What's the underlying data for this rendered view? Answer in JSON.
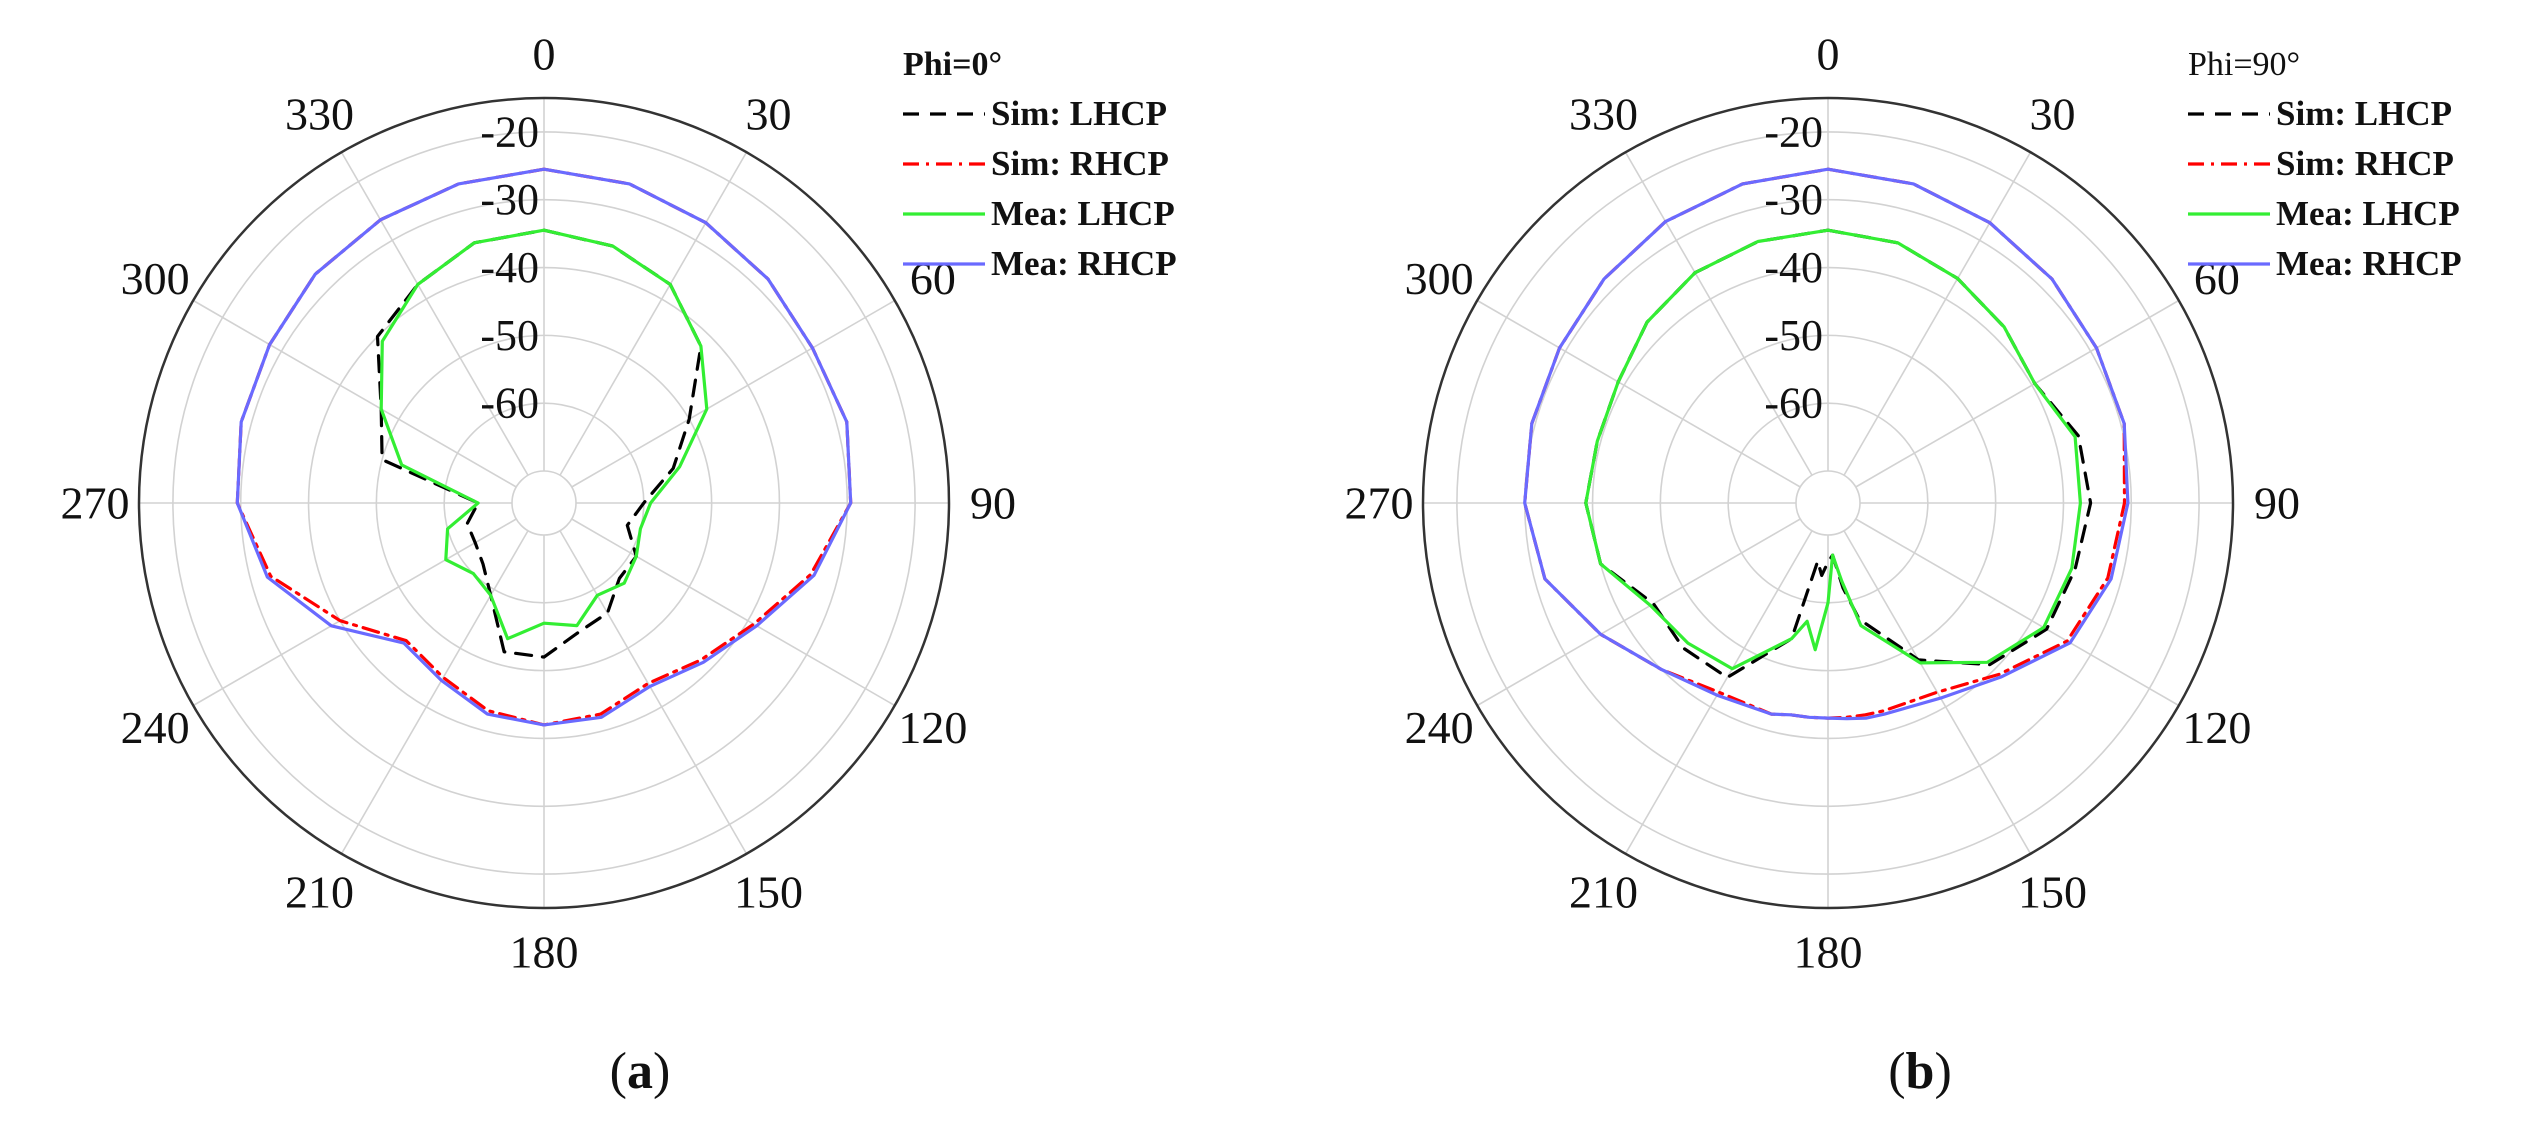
{
  "chart_data": [
    {
      "type": "line",
      "subtype": "polar",
      "panel_label": "(a)",
      "panel_letter": "a",
      "legend_title": "Phi=0°",
      "legend_title_bold": true,
      "theta_ticks": [
        0,
        30,
        60,
        90,
        120,
        150,
        180,
        210,
        240,
        270,
        300,
        330
      ],
      "r_ticks": [
        -20,
        -30,
        -40,
        -50,
        -60
      ],
      "r_range": [
        -70,
        -15
      ],
      "theta_direction": "clockwise",
      "theta_zero": "top",
      "grid": true,
      "legend_position": "top-right",
      "theta": [
        0,
        15,
        30,
        45,
        60,
        75,
        90,
        105,
        120,
        135,
        150,
        165,
        180,
        195,
        210,
        225,
        240,
        255,
        270,
        285,
        300,
        315,
        330,
        345
      ],
      "series": [
        {
          "name": "Sim: LHCP",
          "color": "#000000",
          "dash": "dashed",
          "values": [
            -34.5,
            -35.5,
            -37.5,
            -42,
            -50,
            -55,
            -60,
            -62,
            -59,
            -59,
            -56,
            -55,
            -52,
            -52,
            -59,
            -62,
            -63,
            -63,
            -65,
            -50,
            -47,
            -40,
            -37.5,
            -35
          ]
        },
        {
          "name": "Sim: RHCP",
          "color": "#ff0000",
          "dash": "dash-dot",
          "values": [
            -25.5,
            -26,
            -27,
            -28,
            -29,
            -28.5,
            -29.5,
            -34,
            -39,
            -42,
            -44,
            -42.5,
            -42,
            -43,
            -45,
            -46,
            -40,
            -33,
            -29.5,
            -28.5,
            -28,
            -27,
            -26.5,
            -26
          ]
        },
        {
          "name": "Mea: LHCP",
          "color": "#33ee33",
          "dash": "solid",
          "values": [
            -34.5,
            -35.5,
            -37.5,
            -42,
            -47,
            -54,
            -59,
            -60,
            -59,
            -58,
            -59,
            -56,
            -57,
            -54,
            -59,
            -60,
            -58,
            -60,
            -65,
            -53,
            -47,
            -41,
            -37.5,
            -35
          ]
        },
        {
          "name": "Mea: RHCP",
          "color": "#6a6aff",
          "dash": "solid",
          "values": [
            -25.5,
            -26,
            -27,
            -28,
            -29,
            -28.5,
            -29.5,
            -33.5,
            -38.5,
            -41.5,
            -43.5,
            -42,
            -42,
            -42.5,
            -44.5,
            -45.5,
            -38.5,
            -32.5,
            -29.5,
            -28.5,
            -28,
            -27,
            -26.5,
            -26
          ]
        }
      ]
    },
    {
      "type": "line",
      "subtype": "polar",
      "panel_label": "(b)",
      "panel_letter": "b",
      "legend_title": "Phi=90°",
      "legend_title_bold": false,
      "theta_ticks": [
        0,
        30,
        60,
        90,
        120,
        150,
        180,
        210,
        240,
        270,
        300,
        330
      ],
      "r_ticks": [
        -20,
        -30,
        -40,
        -50,
        -60
      ],
      "r_range": [
        -70,
        -15
      ],
      "theta_direction": "clockwise",
      "theta_zero": "top",
      "grid": true,
      "legend_position": "top-right",
      "theta": [
        0,
        15,
        30,
        45,
        60,
        75,
        90,
        105,
        120,
        135,
        150,
        165,
        170,
        175,
        180,
        185,
        190,
        195,
        210,
        225,
        240,
        255,
        270,
        285,
        300,
        315,
        330,
        345
      ],
      "series": [
        {
          "name": "Sim: LHCP",
          "color": "#000000",
          "dash": "dashed",
          "values": [
            -34.5,
            -35,
            -36.5,
            -38,
            -39.5,
            -36.5,
            -36,
            -37,
            -37.5,
            -41,
            -48,
            -57,
            -62,
            -67,
            -66,
            -64,
            -66,
            -54,
            -45,
            -44.5,
            -45,
            -40,
            -39,
            -39.5,
            -39,
            -37,
            -35.5,
            -34.8
          ]
        },
        {
          "name": "Sim: RHCP",
          "color": "#ff0000",
          "dash": "dash-dot",
          "values": [
            -25.5,
            -26,
            -27,
            -28,
            -29,
            -29.5,
            -31,
            -32,
            -34,
            -39,
            -42.5,
            -43,
            -43,
            -43,
            -43,
            -43,
            -43,
            -42.5,
            -42.5,
            -40,
            -36,
            -31.5,
            -30,
            -29.5,
            -29,
            -28,
            -26.8,
            -26
          ]
        },
        {
          "name": "Mea: LHCP",
          "color": "#33ee33",
          "dash": "solid",
          "values": [
            -34.5,
            -35,
            -36.5,
            -38,
            -39.5,
            -37,
            -37.5,
            -37.5,
            -38,
            -41.5,
            -47.5,
            -56,
            -63,
            -67,
            -60,
            -53,
            -57,
            -54,
            -46.5,
            -45.5,
            -44.5,
            -40,
            -39,
            -39.5,
            -39,
            -37,
            -35.5,
            -34.8
          ]
        },
        {
          "name": "Mea: RHCP",
          "color": "#6a6aff",
          "dash": "solid",
          "values": [
            -25.5,
            -26,
            -27,
            -28,
            -29,
            -29.5,
            -30.5,
            -31.5,
            -33.5,
            -38.5,
            -41.5,
            -42.5,
            -42.5,
            -42.8,
            -43,
            -43,
            -43,
            -42.5,
            -42,
            -40,
            -36,
            -31.5,
            -30,
            -29.5,
            -29,
            -28,
            -26.8,
            -26
          ]
        }
      ]
    }
  ]
}
